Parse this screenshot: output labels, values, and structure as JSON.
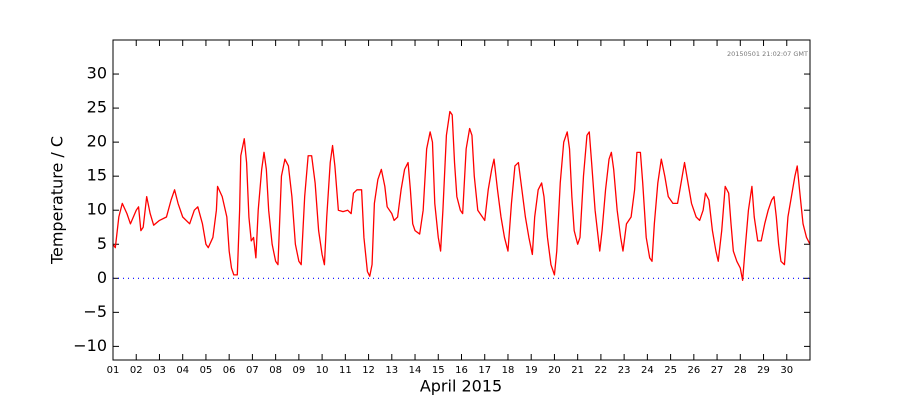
{
  "chart_data": {
    "type": "line",
    "x_label": "April 2015",
    "y_label": "Temperature / C",
    "annotation": "20150501 21:02:07 GMT",
    "color": "#ff0000",
    "hline": 0,
    "hline_color": "#0000ff",
    "xlim": [
      1,
      31
    ],
    "ylim": [
      -12,
      35
    ],
    "xticks": [
      {
        "value": 1,
        "label": "01"
      },
      {
        "value": 2,
        "label": "02"
      },
      {
        "value": 3,
        "label": "03"
      },
      {
        "value": 4,
        "label": "04"
      },
      {
        "value": 5,
        "label": "05"
      },
      {
        "value": 6,
        "label": "06"
      },
      {
        "value": 7,
        "label": "07"
      },
      {
        "value": 8,
        "label": "08"
      },
      {
        "value": 9,
        "label": "09"
      },
      {
        "value": 10,
        "label": "10"
      },
      {
        "value": 11,
        "label": "11"
      },
      {
        "value": 12,
        "label": "12"
      },
      {
        "value": 13,
        "label": "13"
      },
      {
        "value": 14,
        "label": "14"
      },
      {
        "value": 15,
        "label": "15"
      },
      {
        "value": 16,
        "label": "16"
      },
      {
        "value": 17,
        "label": "17"
      },
      {
        "value": 18,
        "label": "18"
      },
      {
        "value": 19,
        "label": "19"
      },
      {
        "value": 20,
        "label": "20"
      },
      {
        "value": 21,
        "label": "21"
      },
      {
        "value": 22,
        "label": "22"
      },
      {
        "value": 23,
        "label": "23"
      },
      {
        "value": 24,
        "label": "24"
      },
      {
        "value": 25,
        "label": "25"
      },
      {
        "value": 26,
        "label": "26"
      },
      {
        "value": 27,
        "label": "27"
      },
      {
        "value": 28,
        "label": "28"
      },
      {
        "value": 29,
        "label": "29"
      },
      {
        "value": 30,
        "label": "30"
      }
    ],
    "yticks": [
      {
        "value": -10,
        "label": "−10"
      },
      {
        "value": -5,
        "label": "−5"
      },
      0,
      5,
      10,
      15,
      20,
      25,
      30
    ],
    "x": [
      1.0,
      1.1,
      1.25,
      1.4,
      1.6,
      1.75,
      2.0,
      2.1,
      2.2,
      2.3,
      2.45,
      2.6,
      2.75,
      3.0,
      3.3,
      3.5,
      3.65,
      3.8,
      4.0,
      4.3,
      4.5,
      4.65,
      4.85,
      5.0,
      5.1,
      5.3,
      5.45,
      5.5,
      5.7,
      5.9,
      6.0,
      6.1,
      6.2,
      6.35,
      6.45,
      6.5,
      6.65,
      6.75,
      6.85,
      6.95,
      7.05,
      7.15,
      7.25,
      7.4,
      7.5,
      7.6,
      7.7,
      7.85,
      8.0,
      8.1,
      8.25,
      8.4,
      8.55,
      8.7,
      8.85,
      9.0,
      9.1,
      9.25,
      9.4,
      9.55,
      9.7,
      9.85,
      10.0,
      10.1,
      10.2,
      10.35,
      10.45,
      10.55,
      10.7,
      10.9,
      11.1,
      11.25,
      11.35,
      11.5,
      11.7,
      11.8,
      11.95,
      12.05,
      12.15,
      12.25,
      12.4,
      12.55,
      12.7,
      12.8,
      13.0,
      13.1,
      13.25,
      13.4,
      13.55,
      13.7,
      13.8,
      13.9,
      14.0,
      14.2,
      14.35,
      14.5,
      14.65,
      14.75,
      14.85,
      15.0,
      15.1,
      15.2,
      15.35,
      15.5,
      15.6,
      15.7,
      15.8,
      15.95,
      16.05,
      16.2,
      16.35,
      16.45,
      16.55,
      16.7,
      16.9,
      17.0,
      17.15,
      17.3,
      17.4,
      17.55,
      17.7,
      17.85,
      18.0,
      18.15,
      18.3,
      18.45,
      18.6,
      18.75,
      18.9,
      19.05,
      19.15,
      19.3,
      19.45,
      19.55,
      19.7,
      19.85,
      20.0,
      20.1,
      20.25,
      20.4,
      20.55,
      20.65,
      20.75,
      20.85,
      21.0,
      21.1,
      21.25,
      21.4,
      21.5,
      21.6,
      21.75,
      21.85,
      21.95,
      22.05,
      22.2,
      22.35,
      22.45,
      22.55,
      22.7,
      22.85,
      22.95,
      23.1,
      23.3,
      23.45,
      23.55,
      23.7,
      23.8,
      23.95,
      24.1,
      24.2,
      24.3,
      24.45,
      24.6,
      24.75,
      24.9,
      25.1,
      25.3,
      25.45,
      25.6,
      25.75,
      25.9,
      26.1,
      26.25,
      26.4,
      26.5,
      26.65,
      26.8,
      26.95,
      27.05,
      27.2,
      27.35,
      27.5,
      27.6,
      27.7,
      27.85,
      28.0,
      28.1,
      28.2,
      28.35,
      28.5,
      28.6,
      28.75,
      28.9,
      29.05,
      29.2,
      29.35,
      29.45,
      29.55,
      29.65,
      29.75,
      29.9,
      30.05,
      30.2,
      30.35,
      30.45,
      30.55,
      30.7,
      30.85,
      31.0
    ],
    "values": [
      5,
      4.5,
      9,
      11,
      9.5,
      8,
      10,
      10.5,
      7,
      7.5,
      12,
      9.5,
      7.8,
      8.5,
      9,
      11.5,
      13,
      11,
      9,
      8,
      10,
      10.5,
      8,
      5,
      4.5,
      6,
      10,
      13.5,
      12,
      9,
      4,
      1.5,
      0.5,
      0.5,
      10,
      18,
      20.5,
      17,
      9,
      5.5,
      6,
      3,
      10,
      16,
      18.5,
      16,
      10,
      5,
      2.5,
      2,
      15,
      17.5,
      16.5,
      12,
      5,
      2.5,
      2,
      12,
      18,
      18,
      14,
      7,
      3.5,
      2,
      9,
      17,
      19.5,
      16.5,
      10,
      9.8,
      10,
      9.5,
      12.5,
      13,
      13,
      6,
      1,
      0.3,
      2,
      11,
      14.5,
      16,
      13.5,
      10.5,
      9.5,
      8.5,
      9,
      13,
      16,
      17,
      13,
      8,
      7,
      6.5,
      10,
      19,
      21.5,
      20,
      11,
      6,
      4,
      10,
      21,
      24.5,
      24,
      17,
      12,
      10,
      9.5,
      19,
      22,
      21,
      15,
      10,
      9,
      8.5,
      13,
      16,
      17.5,
      13,
      9,
      6,
      4,
      11,
      16.5,
      17,
      13,
      9,
      6,
      3.5,
      9,
      13,
      14,
      12,
      6,
      2,
      0.5,
      4,
      14,
      20,
      21.5,
      19,
      12,
      7,
      5,
      6,
      15,
      21,
      21.5,
      17,
      10,
      7,
      4,
      7,
      13,
      17.5,
      18.5,
      16,
      10,
      6,
      4,
      8,
      9,
      13,
      18.5,
      18.5,
      14,
      6,
      3,
      2.5,
      8,
      14,
      17.5,
      15,
      12,
      11,
      11,
      14,
      17,
      14,
      11,
      9,
      8.5,
      10,
      12.5,
      11.5,
      7,
      4,
      2.5,
      7,
      13.5,
      12.5,
      8,
      4,
      2.5,
      1.5,
      -0.3,
      4,
      10,
      13.5,
      9,
      5.5,
      5.5,
      8,
      10,
      11.5,
      12,
      9,
      5,
      2.5,
      2,
      9,
      12,
      15,
      16.5,
      13,
      8,
      6,
      5
    ]
  }
}
